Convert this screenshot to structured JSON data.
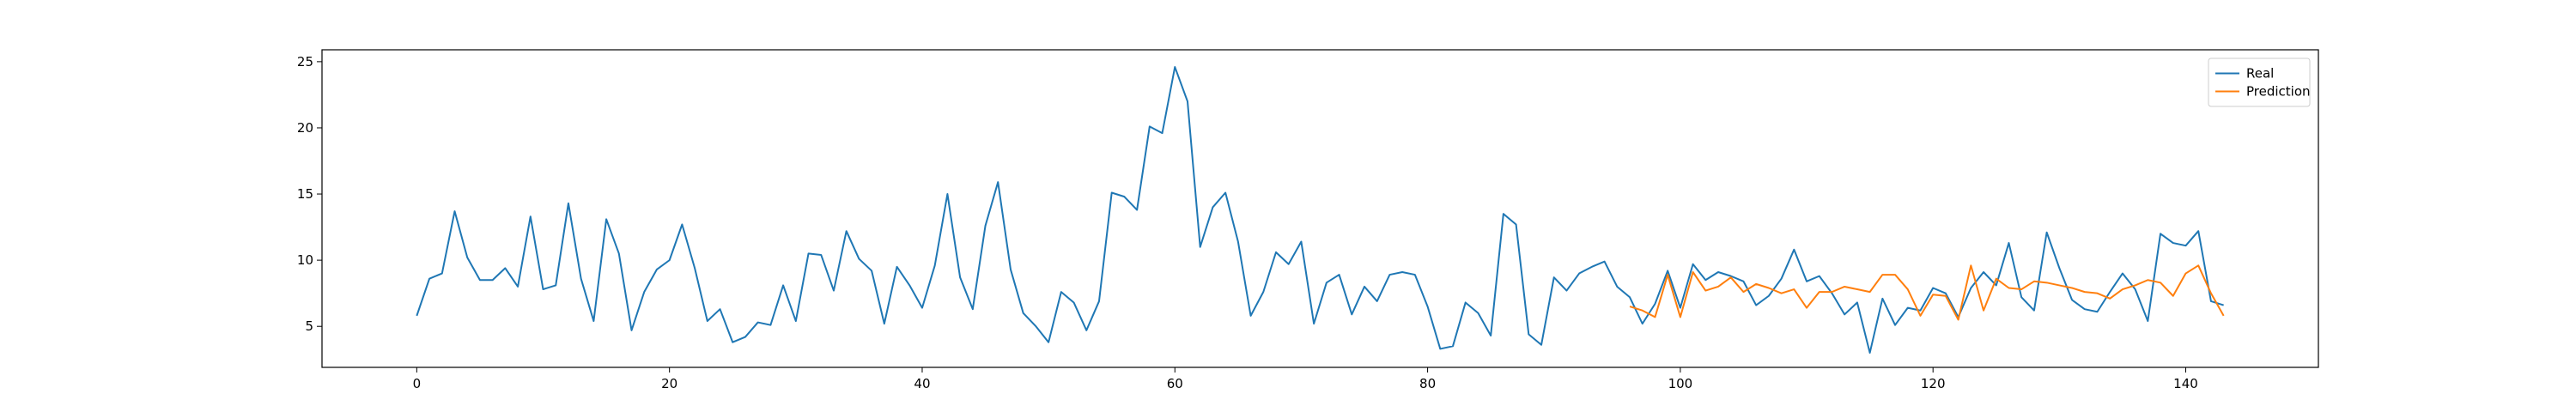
{
  "chart_data": {
    "type": "line",
    "title": "",
    "xlabel": "",
    "ylabel": "",
    "xlim": [
      -7.5,
      150.5
    ],
    "ylim": [
      1.9,
      25.9
    ],
    "xticks": [
      0,
      20,
      40,
      60,
      80,
      100,
      120,
      140
    ],
    "yticks": [
      5,
      10,
      15,
      20,
      25
    ],
    "grid": false,
    "legend_position": "top-right",
    "series": [
      {
        "name": "Real",
        "color": "#1f77b4",
        "x_start": 0,
        "values": [
          5.8,
          8.6,
          9.0,
          13.7,
          10.2,
          8.5,
          8.5,
          9.4,
          8.0,
          13.3,
          7.8,
          8.1,
          14.3,
          8.6,
          5.4,
          13.1,
          10.5,
          4.7,
          7.6,
          9.3,
          10.0,
          12.7,
          9.4,
          5.4,
          6.3,
          3.8,
          4.2,
          5.3,
          5.1,
          8.1,
          5.4,
          10.5,
          10.4,
          7.7,
          12.2,
          10.1,
          9.2,
          5.2,
          9.5,
          8.1,
          6.4,
          9.6,
          15.0,
          8.7,
          6.3,
          12.6,
          15.9,
          9.3,
          6.0,
          5.0,
          3.8,
          7.6,
          6.8,
          4.7,
          6.9,
          15.1,
          14.8,
          13.8,
          20.1,
          19.6,
          24.6,
          22.0,
          11.0,
          14.0,
          15.1,
          11.4,
          5.8,
          7.6,
          10.6,
          9.7,
          11.4,
          5.2,
          8.3,
          8.9,
          5.9,
          8.0,
          6.9,
          8.9,
          9.1,
          8.9,
          6.5,
          3.3,
          3.5,
          6.8,
          6.0,
          4.3,
          13.5,
          12.7,
          4.4,
          3.6,
          8.7,
          7.7,
          9.0,
          9.5,
          9.9,
          8.0,
          7.2,
          5.2,
          6.7,
          9.2,
          6.4,
          9.7,
          8.5,
          9.1,
          8.8,
          8.4,
          6.6,
          7.3,
          8.6,
          10.8,
          8.4,
          8.8,
          7.5,
          5.9,
          6.8,
          3.0,
          7.1,
          5.1,
          6.4,
          6.2,
          7.9,
          7.5,
          5.7,
          7.9,
          9.1,
          8.1,
          11.3,
          7.2,
          6.2,
          12.1,
          9.4,
          7.0,
          6.3,
          6.1,
          7.6,
          9.0,
          7.8,
          5.4,
          12.0,
          11.3,
          11.1,
          12.2,
          6.9,
          6.6
        ]
      },
      {
        "name": "Prediction",
        "color": "#ff7f0e",
        "x_start": 96,
        "values": [
          6.5,
          6.2,
          5.7,
          8.9,
          5.7,
          9.1,
          7.7,
          8.0,
          8.7,
          7.6,
          8.2,
          7.9,
          7.5,
          7.8,
          6.4,
          7.6,
          7.6,
          8.0,
          7.8,
          7.6,
          8.9,
          8.9,
          7.8,
          5.8,
          7.4,
          7.3,
          5.5,
          9.6,
          6.2,
          8.6,
          7.9,
          7.8,
          8.4,
          8.3,
          8.1,
          7.9,
          7.6,
          7.5,
          7.1,
          7.8,
          8.1,
          8.5,
          8.3,
          7.3,
          9.0,
          9.6,
          7.5,
          5.8
        ]
      }
    ]
  }
}
